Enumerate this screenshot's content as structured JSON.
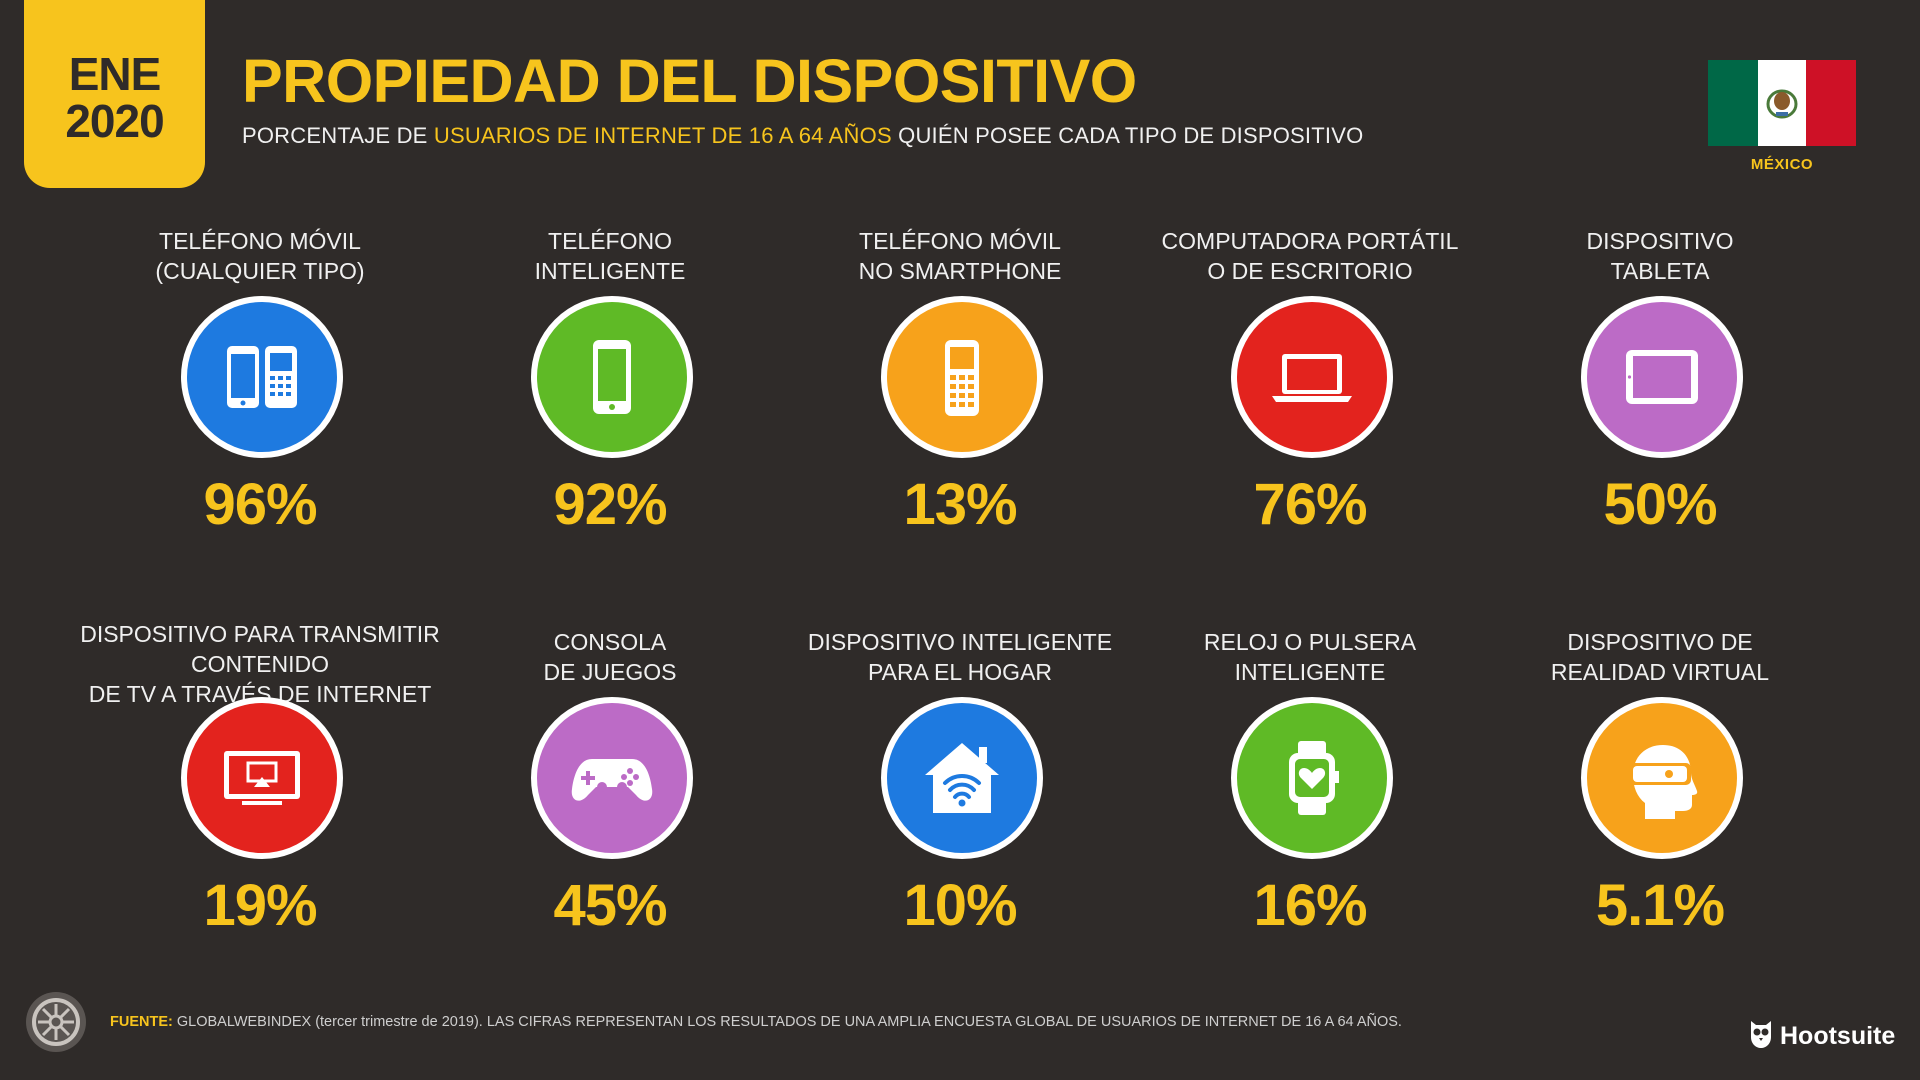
{
  "header": {
    "date_month": "ENE",
    "date_year": "2020",
    "title": "PROPIEDAD DEL DISPOSITIVO",
    "subtitle_part1": "PORCENTAJE DE",
    "subtitle_highlight": "USUARIOS DE INTERNET DE 16 A 64 AÑOS",
    "subtitle_part2": "QUIÉN POSEE CADA TIPO DE DISPOSITIVO",
    "country": "MÉXICO"
  },
  "stats": [
    {
      "label1": "TELÉFONO MÓVIL",
      "label2": "(CUALQUIER TIPO)",
      "value": "96%",
      "icon": "mobile-phones-icon",
      "color": "#1e7ae0"
    },
    {
      "label1": "TELÉFONO",
      "label2": "INTELIGENTE",
      "value": "92%",
      "icon": "smartphone-icon",
      "color": "#5fba26"
    },
    {
      "label1": "TELÉFONO MÓVIL",
      "label2": "NO SMARTPHONE",
      "value": "13%",
      "icon": "feature-phone-icon",
      "color": "#f7a21b"
    },
    {
      "label1": "COMPUTADORA PORTÁTIL",
      "label2": "O DE ESCRITORIO",
      "value": "76%",
      "icon": "laptop-icon",
      "color": "#e3231e"
    },
    {
      "label1": "DISPOSITIVO",
      "label2": "TABLETA",
      "value": "50%",
      "icon": "tablet-icon",
      "color": "#bc6bc6"
    },
    {
      "label1": "DISPOSITIVO PARA TRANSMITIR CONTENIDO",
      "label2": "DE TV A TRAVÉS DE INTERNET",
      "value": "19%",
      "icon": "tv-streaming-icon",
      "color": "#e3231e"
    },
    {
      "label1": "CONSOLA",
      "label2": "DE JUEGOS",
      "value": "45%",
      "icon": "game-controller-icon",
      "color": "#bc6bc6"
    },
    {
      "label1": "DISPOSITIVO INTELIGENTE",
      "label2": "PARA EL HOGAR",
      "value": "10%",
      "icon": "smart-home-icon",
      "color": "#1e7ae0"
    },
    {
      "label1": "RELOJ O PULSERA",
      "label2": "INTELIGENTE",
      "value": "16%",
      "icon": "smartwatch-icon",
      "color": "#5fba26"
    },
    {
      "label1": "DISPOSITIVO DE",
      "label2": "REALIDAD VIRTUAL",
      "value": "5.1%",
      "icon": "vr-headset-icon",
      "color": "#f7a21b"
    }
  ],
  "footer": {
    "source_label": "FUENTE:",
    "source_text": "GLOBALWEBINDEX (tercer trimestre de 2019). LAS CIFRAS REPRESENTAN LOS RESULTADOS DE UNA AMPLIA ENCUESTA GLOBAL DE USUARIOS DE INTERNET DE 16 A 64 AÑOS.",
    "brand": "Hootsuite"
  },
  "colors": {
    "background": "#2f2b29",
    "accent": "#f7c41d",
    "flag_green": "#006847",
    "flag_red": "#ce1126"
  }
}
